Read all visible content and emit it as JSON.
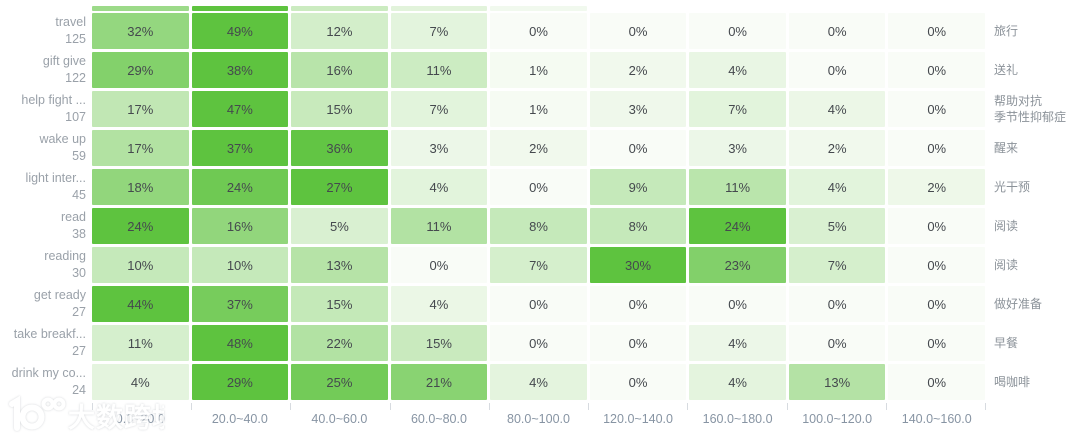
{
  "chart_data": {
    "type": "heatmap",
    "title": "",
    "value_suffix": "%",
    "color_scale": {
      "min": "#f9fcf7",
      "max": "#5ec33f",
      "normalization": "per-row-max"
    },
    "columns": [
      "0.0~20.0",
      "20.0~40.0",
      "40.0~60.0",
      "60.0~80.0",
      "80.0~100.0",
      "120.0~140.0",
      "160.0~180.0",
      "100.0~120.0",
      "140.0~160.0"
    ],
    "rows": [
      {
        "label_en": "travel",
        "count": "125",
        "label_zh": "旅行",
        "values": [
          32,
          49,
          12,
          7,
          0,
          0,
          0,
          0,
          0
        ]
      },
      {
        "label_en": "gift give",
        "count": "122",
        "label_zh": "送礼",
        "values": [
          29,
          38,
          16,
          11,
          1,
          2,
          4,
          0,
          0
        ]
      },
      {
        "label_en": "help fight ...",
        "count": "107",
        "label_zh": "帮助对抗\n季节性抑郁症",
        "values": [
          17,
          47,
          15,
          7,
          1,
          3,
          7,
          4,
          0
        ]
      },
      {
        "label_en": "wake up",
        "count": "59",
        "label_zh": "醒来",
        "values": [
          17,
          37,
          36,
          3,
          2,
          0,
          3,
          2,
          0
        ]
      },
      {
        "label_en": "light inter...",
        "count": "45",
        "label_zh": "光干预",
        "values": [
          18,
          24,
          27,
          4,
          0,
          9,
          11,
          4,
          2
        ]
      },
      {
        "label_en": "read",
        "count": "38",
        "label_zh": "阅读",
        "values": [
          24,
          16,
          5,
          11,
          8,
          8,
          24,
          5,
          0
        ]
      },
      {
        "label_en": "reading",
        "count": "30",
        "label_zh": "阅读",
        "values": [
          10,
          10,
          13,
          0,
          7,
          30,
          23,
          7,
          0
        ]
      },
      {
        "label_en": "get ready",
        "count": "27",
        "label_zh": "做好准备",
        "values": [
          44,
          37,
          15,
          4,
          0,
          0,
          0,
          0,
          0
        ]
      },
      {
        "label_en": "take breakf...",
        "count": "27",
        "label_zh": "早餐",
        "values": [
          11,
          48,
          22,
          15,
          0,
          0,
          4,
          0,
          0
        ]
      },
      {
        "label_en": "drink my co...",
        "count": "24",
        "label_zh": "喝咖啡",
        "values": [
          4,
          29,
          25,
          21,
          4,
          0,
          4,
          13,
          0
        ]
      }
    ],
    "cropped_top_row_ratios": [
      0.6,
      1,
      0.3,
      0.15,
      0.05,
      0,
      0,
      0,
      0
    ]
  },
  "watermark": {
    "brand_text": "大数跨境"
  }
}
